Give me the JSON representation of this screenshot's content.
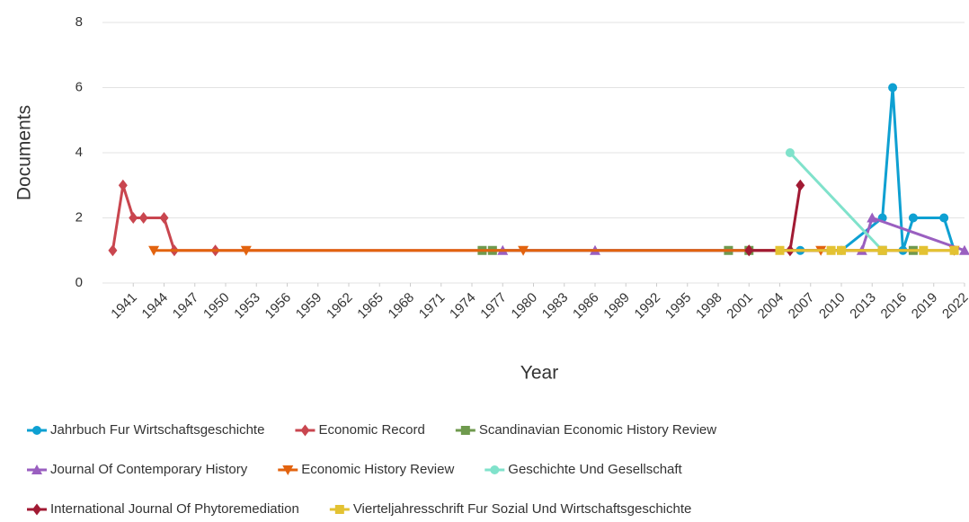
{
  "chart_data": {
    "type": "line",
    "xlabel": "Year",
    "ylabel": "Documents",
    "xlim": [
      1938,
      2022
    ],
    "ylim": [
      0,
      8
    ],
    "yticks": [
      0,
      2,
      4,
      6,
      8
    ],
    "xticks": [
      1941,
      1944,
      1947,
      1950,
      1953,
      1956,
      1959,
      1962,
      1965,
      1968,
      1971,
      1974,
      1977,
      1980,
      1983,
      1986,
      1989,
      1992,
      1995,
      1998,
      2001,
      2004,
      2007,
      2010,
      2013,
      2016,
      2019,
      2022
    ],
    "grid": true,
    "legend": "bottom",
    "series": [
      {
        "name": "Jahrbuch Fur Wirtschaftsgeschichte",
        "color": "#0ea0d2",
        "marker": "circle",
        "x": [
          2006,
          2010,
          2014,
          2015,
          2016,
          2017,
          2020,
          2021
        ],
        "values": [
          1,
          1,
          2,
          6,
          1,
          2,
          2,
          1
        ]
      },
      {
        "name": "Economic Record",
        "color": "#c9464f",
        "marker": "diamond",
        "x": [
          1939,
          1940,
          1941,
          1942,
          1944,
          1945,
          1949,
          2001
        ],
        "values": [
          1,
          3,
          2,
          2,
          2,
          1,
          1,
          1
        ]
      },
      {
        "name": "Scandinavian Economic History Review",
        "color": "#6f9a4e",
        "marker": "square",
        "x": [
          1975,
          1976,
          1999,
          2001,
          2014,
          2017
        ],
        "values": [
          1,
          1,
          1,
          1,
          1,
          1
        ]
      },
      {
        "name": "Journal Of Contemporary History",
        "color": "#9a5fc0",
        "marker": "triangle",
        "x": [
          1977,
          1986,
          2012,
          2013,
          2022
        ],
        "values": [
          1,
          1,
          1,
          2,
          1
        ]
      },
      {
        "name": "Economic History Review",
        "color": "#e2630f",
        "marker": "triangle-down",
        "x": [
          1943,
          1952,
          1979,
          2008,
          2021
        ],
        "values": [
          1,
          1,
          1,
          1,
          1
        ]
      },
      {
        "name": "Geschichte Und Gesellschaft",
        "color": "#80e2cb",
        "marker": "circle",
        "x": [
          2005,
          2014
        ],
        "values": [
          4,
          1
        ]
      },
      {
        "name": "International Journal Of Phytoremediation",
        "color": "#a11a33",
        "marker": "diamond",
        "x": [
          2001,
          2005,
          2006
        ],
        "values": [
          1,
          1,
          3
        ]
      },
      {
        "name": "Vierteljahresschrift Fur Sozial Und Wirtschaftsgeschichte",
        "color": "#e3c232",
        "marker": "square",
        "x": [
          2004,
          2009,
          2010,
          2014,
          2018,
          2021
        ],
        "values": [
          1,
          1,
          1,
          1,
          1,
          1
        ]
      }
    ]
  }
}
